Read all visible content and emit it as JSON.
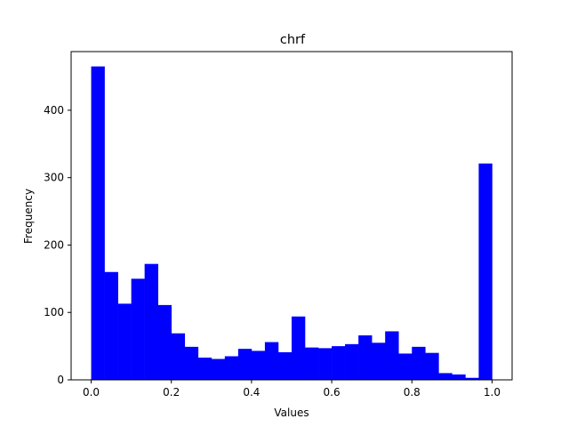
{
  "chart_data": {
    "type": "bar",
    "title": "chrf",
    "xlabel": "Values",
    "ylabel": "Frequency",
    "bar_color": "#0000ff",
    "xlim": [
      -0.05,
      1.05
    ],
    "ylim": [
      0,
      487
    ],
    "xticks": [
      0.0,
      0.2,
      0.4,
      0.6,
      0.8,
      1.0
    ],
    "xtick_labels": [
      "0.0",
      "0.2",
      "0.4",
      "0.6",
      "0.8",
      "1.0"
    ],
    "yticks": [
      0,
      100,
      200,
      300,
      400
    ],
    "ytick_labels": [
      "0",
      "100",
      "200",
      "300",
      "400"
    ],
    "bin_edges": [
      0.0,
      0.0333,
      0.0667,
      0.1,
      0.1333,
      0.1667,
      0.2,
      0.2333,
      0.2667,
      0.3,
      0.3333,
      0.3667,
      0.4,
      0.4333,
      0.4667,
      0.5,
      0.5333,
      0.5667,
      0.6,
      0.6333,
      0.6667,
      0.7,
      0.7333,
      0.7667,
      0.8,
      0.8333,
      0.8667,
      0.9,
      0.9333,
      0.9667,
      1.0
    ],
    "values": [
      465,
      160,
      113,
      150,
      172,
      111,
      69,
      49,
      33,
      31,
      35,
      46,
      43,
      56,
      41,
      94,
      48,
      47,
      50,
      53,
      66,
      55,
      72,
      39,
      49,
      40,
      10,
      8,
      3,
      321
    ],
    "grid": false,
    "legend": false
  }
}
